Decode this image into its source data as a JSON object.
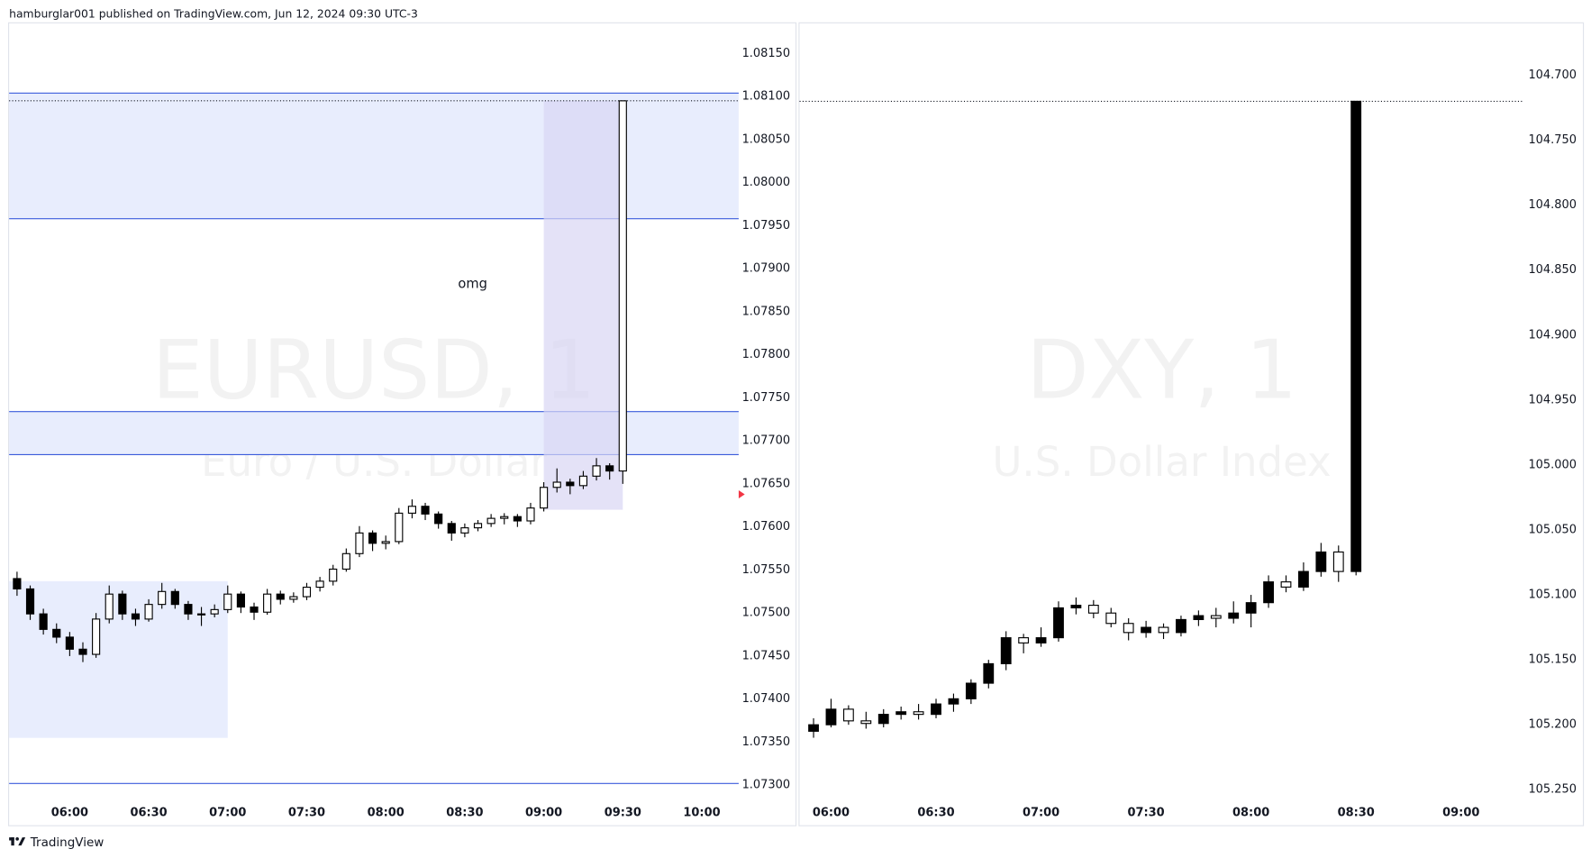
{
  "header": "hamburglar001 published on TradingView.com, Jun 12, 2024 09:30 UTC-3",
  "footer": "TradingView",
  "chart_data": [
    {
      "type": "candlestick",
      "title": "EURUSD, 1",
      "subtitle": "Euro / U.S. Dollar",
      "up_color": "#ffffff",
      "down_color": "#000000",
      "wick_color": "#000000",
      "xlim": [
        "05:37",
        "10:14"
      ],
      "ylim": [
        1.07283,
        1.08185
      ],
      "xticks": [
        "06:00",
        "06:30",
        "07:00",
        "07:30",
        "08:00",
        "08:30",
        "09:00",
        "09:30",
        "10:00"
      ],
      "yticks": [
        {
          "value": 1.073,
          "label": "1.07300"
        },
        {
          "value": 1.0735,
          "label": "1.07350"
        },
        {
          "value": 1.074,
          "label": "1.07400"
        },
        {
          "value": 1.0745,
          "label": "1.07450"
        },
        {
          "value": 1.075,
          "label": "1.07500"
        },
        {
          "value": 1.0755,
          "label": "1.07550"
        },
        {
          "value": 1.076,
          "label": "1.07600"
        },
        {
          "value": 1.0765,
          "label": "1.07650"
        },
        {
          "value": 1.077,
          "label": "1.07700"
        },
        {
          "value": 1.0775,
          "label": "1.07750"
        },
        {
          "value": 1.078,
          "label": "1.07800"
        },
        {
          "value": 1.0785,
          "label": "1.07850"
        },
        {
          "value": 1.079,
          "label": "1.07900"
        },
        {
          "value": 1.0795,
          "label": "1.07950"
        },
        {
          "value": 1.08,
          "label": "1.08000"
        },
        {
          "value": 1.0805,
          "label": "1.08050"
        },
        {
          "value": 1.081,
          "label": "1.08100"
        },
        {
          "value": 1.0815,
          "label": "1.08150"
        }
      ],
      "x": [
        "05:40",
        "05:45",
        "05:50",
        "05:55",
        "06:00",
        "06:05",
        "06:10",
        "06:15",
        "06:20",
        "06:25",
        "06:30",
        "06:35",
        "06:40",
        "06:45",
        "06:50",
        "06:55",
        "07:00",
        "07:05",
        "07:10",
        "07:15",
        "07:20",
        "07:25",
        "07:30",
        "07:35",
        "07:40",
        "07:45",
        "07:50",
        "07:55",
        "08:00",
        "08:05",
        "08:10",
        "08:15",
        "08:20",
        "08:25",
        "08:30",
        "08:35",
        "08:40",
        "08:45",
        "08:50",
        "08:55",
        "09:00",
        "09:05",
        "09:10",
        "09:15",
        "09:20",
        "09:25",
        "09:30"
      ],
      "open": [
        1.0754,
        1.07528,
        1.07499,
        1.07481,
        1.07472,
        1.07458,
        1.07452,
        1.07493,
        1.07522,
        1.07499,
        1.07493,
        1.0751,
        1.07525,
        1.0751,
        1.07499,
        1.07499,
        1.07504,
        1.07522,
        1.07507,
        1.07501,
        1.07522,
        1.07516,
        1.07519,
        1.0753,
        1.07537,
        1.07551,
        1.07569,
        1.07593,
        1.07581,
        1.07583,
        1.07616,
        1.07624,
        1.07615,
        1.07604,
        1.07593,
        1.07599,
        1.07604,
        1.0761,
        1.07612,
        1.07607,
        1.07622,
        1.07646,
        1.07652,
        1.07648,
        1.07659,
        1.07671,
        1.07665
      ],
      "high": [
        1.07548,
        1.07532,
        1.07505,
        1.07488,
        1.07478,
        1.07466,
        1.075,
        1.07532,
        1.07526,
        1.07505,
        1.07516,
        1.07535,
        1.07528,
        1.07514,
        1.07507,
        1.0751,
        1.07532,
        1.07525,
        1.07512,
        1.07528,
        1.07526,
        1.07524,
        1.07535,
        1.07542,
        1.07556,
        1.07575,
        1.07601,
        1.07596,
        1.0759,
        1.07622,
        1.07632,
        1.07628,
        1.07618,
        1.07607,
        1.07604,
        1.07608,
        1.07615,
        1.07616,
        1.07615,
        1.07628,
        1.07652,
        1.07668,
        1.07656,
        1.07665,
        1.0768,
        1.07674,
        1.08095
      ],
      "low": [
        1.0752,
        1.07492,
        1.07475,
        1.07465,
        1.0745,
        1.07443,
        1.07448,
        1.07488,
        1.07492,
        1.07485,
        1.0749,
        1.07505,
        1.07505,
        1.07492,
        1.07485,
        1.07495,
        1.075,
        1.075,
        1.07492,
        1.07498,
        1.0751,
        1.07512,
        1.07515,
        1.07525,
        1.07532,
        1.07548,
        1.07565,
        1.07572,
        1.07574,
        1.0758,
        1.0761,
        1.07608,
        1.07598,
        1.07584,
        1.07588,
        1.07595,
        1.076,
        1.07603,
        1.076,
        1.07603,
        1.07618,
        1.0764,
        1.07638,
        1.07644,
        1.07654,
        1.07655,
        1.0765
      ],
      "close": [
        1.07528,
        1.07499,
        1.07481,
        1.07472,
        1.07458,
        1.07452,
        1.07493,
        1.07522,
        1.07499,
        1.07493,
        1.0751,
        1.07525,
        1.0751,
        1.07499,
        1.07499,
        1.07504,
        1.07522,
        1.07507,
        1.07501,
        1.07522,
        1.07516,
        1.07519,
        1.0753,
        1.07537,
        1.07551,
        1.07569,
        1.07593,
        1.07581,
        1.07583,
        1.07616,
        1.07624,
        1.07615,
        1.07604,
        1.07593,
        1.07599,
        1.07604,
        1.0761,
        1.07612,
        1.07607,
        1.07622,
        1.07646,
        1.07652,
        1.07648,
        1.07659,
        1.07671,
        1.07665,
        1.08095
      ],
      "zones": [
        {
          "y": [
            1.07958,
            1.08104
          ],
          "color": "#e8edfd",
          "border": "#3b5bdb"
        },
        {
          "y": [
            1.07684,
            1.07734
          ],
          "color": "#e8edfd",
          "border": "#3b5bdb"
        },
        {
          "y": [
            1.07355,
            1.07537
          ],
          "x_end": "07:00",
          "color": "#e8edfd"
        },
        {
          "y": [
            1.0762,
            1.08095
          ],
          "x": [
            "09:00",
            "09:30"
          ],
          "color": "#d9d5f3",
          "opacity": 0.7
        }
      ],
      "lines": [
        {
          "y": 1.07302,
          "color": "#3b5bdb"
        }
      ],
      "price_line": 1.08095,
      "annotations": [
        {
          "text": "omg",
          "x": "08:33",
          "y": 1.07882
        }
      ]
    },
    {
      "type": "candlestick",
      "title": "DXY, 1",
      "subtitle": "U.S. Dollar Index",
      "up_color": "#ffffff",
      "down_color": "#000000",
      "wick_color": "#000000",
      "inverted": true,
      "xlim": [
        "05:51",
        "09:18"
      ],
      "ylim": [
        104.66,
        105.2578
      ],
      "xticks": [
        "06:00",
        "06:30",
        "07:00",
        "07:30",
        "08:00",
        "08:30",
        "09:00"
      ],
      "yticks": [
        {
          "value": 104.7,
          "label": "104.700"
        },
        {
          "value": 104.75,
          "label": "104.750"
        },
        {
          "value": 104.8,
          "label": "104.800"
        },
        {
          "value": 104.85,
          "label": "104.850"
        },
        {
          "value": 104.9,
          "label": "104.900"
        },
        {
          "value": 104.95,
          "label": "104.950"
        },
        {
          "value": 105,
          "label": "105.000"
        },
        {
          "value": 105.05,
          "label": "105.050"
        },
        {
          "value": 105.1,
          "label": "105.100"
        },
        {
          "value": 105.15,
          "label": "105.150"
        },
        {
          "value": 105.2,
          "label": "105.200"
        },
        {
          "value": 105.25,
          "label": "105.250"
        }
      ],
      "x": [
        "05:55",
        "06:00",
        "06:05",
        "06:10",
        "06:15",
        "06:20",
        "06:25",
        "06:30",
        "06:35",
        "06:40",
        "06:45",
        "06:50",
        "06:55",
        "07:00",
        "07:05",
        "07:10",
        "07:15",
        "07:20",
        "07:25",
        "07:30",
        "07:35",
        "07:40",
        "07:45",
        "07:50",
        "07:55",
        "08:00",
        "08:05",
        "08:10",
        "08:15",
        "08:20",
        "08:25",
        "08:30"
      ],
      "open": [
        105.205,
        105.2,
        105.188,
        105.197,
        105.199,
        105.192,
        105.19,
        105.192,
        105.184,
        105.18,
        105.168,
        105.153,
        105.133,
        105.137,
        105.133,
        105.11,
        105.108,
        105.114,
        105.122,
        105.129,
        105.125,
        105.129,
        105.119,
        105.116,
        105.118,
        105.114,
        105.106,
        105.09,
        105.094,
        105.082,
        105.067,
        105.082
      ],
      "high": [
        105.21,
        105.202,
        105.2,
        105.203,
        105.202,
        105.196,
        105.196,
        105.195,
        105.19,
        105.184,
        105.172,
        105.158,
        105.145,
        105.14,
        105.136,
        105.115,
        105.118,
        105.125,
        105.135,
        105.133,
        105.134,
        105.132,
        105.124,
        105.125,
        105.122,
        105.125,
        105.11,
        105.098,
        105.097,
        105.086,
        105.09,
        105.085
      ],
      "low": [
        105.195,
        105.18,
        105.185,
        105.19,
        105.188,
        105.186,
        105.184,
        105.18,
        105.176,
        105.165,
        105.15,
        105.128,
        105.13,
        105.125,
        105.105,
        105.102,
        105.104,
        105.11,
        105.118,
        105.12,
        105.122,
        105.116,
        105.112,
        105.11,
        105.105,
        105.1,
        105.085,
        105.085,
        105.075,
        105.06,
        105.062,
        104.72
      ],
      "close": [
        105.2,
        105.188,
        105.197,
        105.199,
        105.192,
        105.19,
        105.192,
        105.184,
        105.18,
        105.168,
        105.153,
        105.133,
        105.137,
        105.133,
        105.11,
        105.108,
        105.114,
        105.122,
        105.129,
        105.125,
        105.129,
        105.119,
        105.116,
        105.118,
        105.114,
        105.106,
        105.09,
        105.094,
        105.082,
        105.067,
        105.082,
        104.72
      ],
      "price_line": 104.72
    }
  ]
}
